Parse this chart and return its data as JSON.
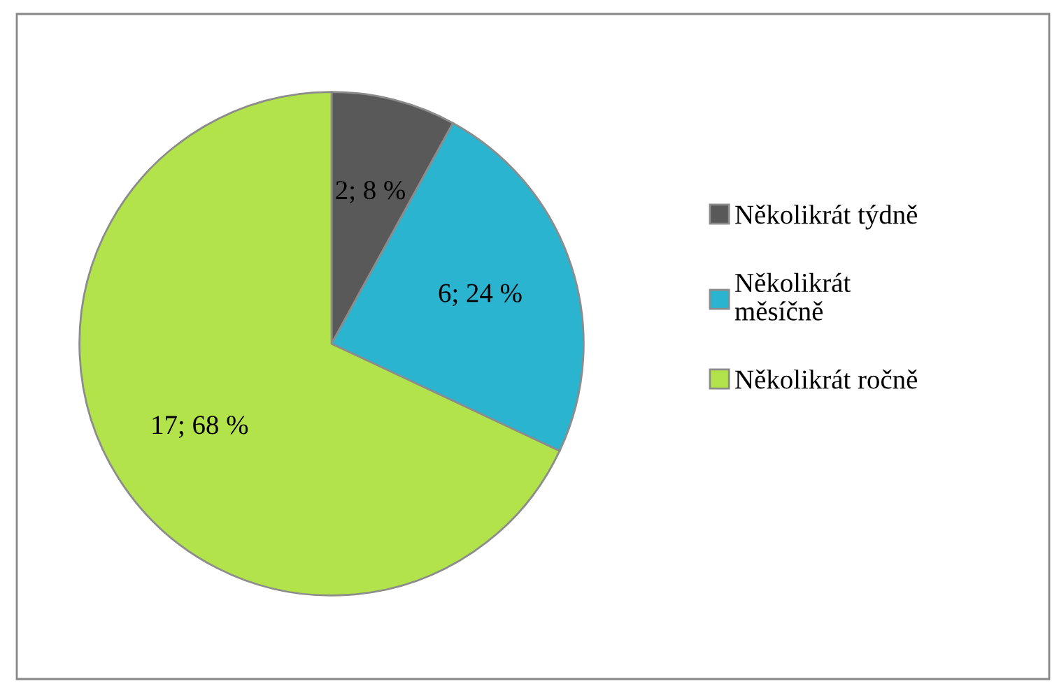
{
  "chart_data": {
    "type": "pie",
    "categories": [
      "Několikrát týdně",
      "Několikrát měsíčně",
      "Několikrát ročně"
    ],
    "values": [
      2,
      6,
      17
    ],
    "colors": [
      "#595959",
      "#2bb4d0",
      "#b3e34b"
    ],
    "value_labels": [
      "2; 8 %",
      "6; 24 %",
      "17; 68 %"
    ],
    "legend": "right"
  }
}
